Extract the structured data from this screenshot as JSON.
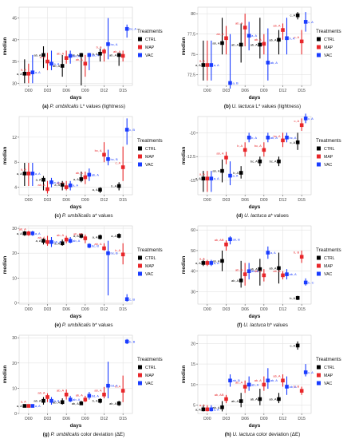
{
  "figure": {
    "treatments_title": "Treatments",
    "colors": {
      "CTRL": "#000000",
      "MAP": "#e8262a",
      "VAC": "#1a3cff"
    }
  },
  "chart_data": [
    {
      "type": "scatter",
      "ylabel": "median",
      "xlabel": "days",
      "caption": "(a) P. umbilicalis L* values (lightness)",
      "caption_parts": [
        "(a)",
        "P. umbilicalis",
        "L*",
        "values (lightness)"
      ],
      "categories": [
        "D00",
        "D03",
        "D06",
        "D09",
        "D12",
        "D15"
      ],
      "yticks": [
        30,
        35,
        40,
        45
      ],
      "ylim": [
        29.5,
        47.5
      ],
      "grid": true,
      "legend": "right",
      "series": [
        {
          "name": "CTRL",
          "values": [
            32.2,
            36.5,
            34.0,
            36.5,
            36.8,
            36.5
          ],
          "low": [
            30.0,
            33.5,
            31.5,
            29.5,
            35.0,
            34.0
          ],
          "high": [
            35.5,
            38.5,
            36.5,
            37.0,
            38.0,
            37.0
          ],
          "labels": [
            "a, A",
            "ab, A",
            "ab, A",
            "ab, A",
            "b, A",
            "ab, A"
          ]
        },
        {
          "name": "MAP",
          "values": [
            32.2,
            35.0,
            35.8,
            34.5,
            37.3,
            36.3
          ],
          "low": [
            30.0,
            33.0,
            34.5,
            31.5,
            35.0,
            35.0
          ],
          "high": [
            34.5,
            37.0,
            37.5,
            36.5,
            38.0,
            37.5
          ],
          "labels": [
            "a, A",
            "a, A",
            "ab, A",
            "ab, A",
            "b, A",
            "ab, A"
          ]
        },
        {
          "name": "VAC",
          "values": [
            32.5,
            34.5,
            36.3,
            36.5,
            39.0,
            42.5
          ],
          "low": [
            30.0,
            33.0,
            34.5,
            33.0,
            35.5,
            40.5
          ],
          "high": [
            36.5,
            37.5,
            37.5,
            37.0,
            45.0,
            43.5
          ],
          "labels": [
            "a, A",
            "a, A",
            "ab, A",
            "ab, A",
            "bc, A",
            "bc, A"
          ]
        }
      ]
    },
    {
      "type": "scatter",
      "ylabel": "median",
      "xlabel": "days",
      "caption": "(b) U. lactuca L* values (lightness)",
      "caption_parts": [
        "(b)",
        "U. lactuca",
        "L*",
        "values (lightness)"
      ],
      "categories": [
        "D00",
        "D03",
        "D06",
        "D09",
        "D12",
        "D15"
      ],
      "yticks": [
        72.5,
        75.0,
        77.5,
        80.0
      ],
      "ylim": [
        71.2,
        80.8
      ],
      "grid": true,
      "legend": "right",
      "series": [
        {
          "name": "CTRL",
          "values": [
            73.7,
            76.4,
            76.2,
            76.2,
            76.8,
            79.8
          ],
          "low": [
            71.8,
            75.0,
            74.0,
            74.5,
            75.0,
            79.3
          ],
          "high": [
            76.7,
            79.5,
            78.8,
            79.5,
            78.0,
            80.2
          ],
          "labels": [
            "a, A",
            "ab, A",
            "ab, A",
            "ab, A",
            "ab, A",
            "c, A"
          ]
        },
        {
          "name": "MAP",
          "values": [
            73.7,
            77.0,
            78.3,
            76.3,
            78.0,
            76.6
          ],
          "low": [
            71.8,
            75.0,
            76.0,
            75.0,
            76.8,
            75.0
          ],
          "high": [
            76.7,
            78.5,
            80.0,
            77.5,
            78.8,
            78.0
          ],
          "labels": [
            "a, A",
            "ab, A",
            "ab, A",
            "ab, A",
            "ab, A",
            "c, A"
          ]
        },
        {
          "name": "VAC",
          "values": [
            73.7,
            71.5,
            77.3,
            74.0,
            77.0,
            79.0
          ],
          "low": [
            71.8,
            70.8,
            75.5,
            71.8,
            75.0,
            77.8
          ],
          "high": [
            76.7,
            77.5,
            79.0,
            78.2,
            79.5,
            80.2
          ],
          "labels": [
            "a, A",
            "a, B",
            "a, A",
            "ab, A",
            "b, A",
            "c, A"
          ]
        }
      ]
    },
    {
      "type": "scatter",
      "ylabel": "median",
      "xlabel": "days",
      "caption": "(c) P. umbilicalis a* values",
      "caption_parts": [
        "(c)",
        "P. umbilicalis",
        "a*",
        "values"
      ],
      "categories": [
        "D00",
        "D03",
        "D06",
        "D09",
        "D12",
        "D15"
      ],
      "yticks": [
        4,
        8,
        12
      ],
      "ylim": [
        2.8,
        15.3
      ],
      "grid": true,
      "legend": "right",
      "series": [
        {
          "name": "CTRL",
          "values": [
            6.2,
            5.2,
            4.4,
            5.3,
            3.6,
            4.2
          ],
          "low": [
            4.2,
            3.5,
            3.5,
            4.8,
            3.1,
            3.5
          ],
          "high": [
            7.9,
            5.8,
            5.0,
            6.5,
            4.0,
            4.8
          ],
          "labels": [
            "a, A",
            "a, A",
            "a, A",
            "a, A",
            "a, A",
            "b, A"
          ]
        },
        {
          "name": "MAP",
          "values": [
            6.2,
            3.7,
            4.0,
            5.6,
            9.2,
            7.2
          ],
          "low": [
            4.2,
            3.0,
            3.5,
            4.5,
            8.0,
            5.0
          ],
          "high": [
            7.9,
            5.0,
            5.0,
            6.5,
            11.2,
            10.5
          ],
          "labels": [
            "a, A",
            "ab, A",
            "ab, A",
            "ab, A",
            "bc, A",
            "c, A"
          ]
        },
        {
          "name": "VAC",
          "values": [
            6.2,
            4.8,
            4.3,
            6.0,
            8.5,
            13.2
          ],
          "low": [
            4.2,
            4.0,
            3.5,
            5.0,
            7.5,
            10.8
          ],
          "high": [
            7.9,
            5.5,
            5.0,
            7.0,
            10.0,
            15.0
          ],
          "labels": [
            "a, A",
            "a, A",
            "a, A",
            "ab, A",
            "bc, B",
            "c, B"
          ]
        }
      ]
    },
    {
      "type": "scatter",
      "ylabel": "median",
      "xlabel": "days",
      "caption": "(d) U. lactuca a* values",
      "caption_parts": [
        "(d)",
        "U. lactuca",
        "a*",
        "values"
      ],
      "categories": [
        "D00",
        "D03",
        "D06",
        "D09",
        "D12",
        "D15"
      ],
      "yticks": [
        -15.0,
        -12.5,
        -10.0
      ],
      "ylim": [
        -16.5,
        -8.3
      ],
      "grid": true,
      "legend": "right",
      "series": [
        {
          "name": "CTRL",
          "values": [
            -14.8,
            -14.0,
            -14.2,
            -13.0,
            -13.0,
            -11.0
          ],
          "low": [
            -16.2,
            -15.2,
            -14.8,
            -13.5,
            -13.5,
            -11.8
          ],
          "high": [
            -14.0,
            -12.8,
            -13.5,
            -12.5,
            -12.5,
            -10.0
          ],
          "labels": [
            "a, A",
            "ab, A",
            "b, A",
            "bc, A",
            "bc, A",
            "c, A"
          ]
        },
        {
          "name": "MAP",
          "values": [
            -14.8,
            -12.6,
            -11.8,
            -11.8,
            -10.8,
            -9.2
          ],
          "low": [
            -16.2,
            -13.3,
            -12.5,
            -12.5,
            -11.5,
            -9.8
          ],
          "high": [
            -14.0,
            -12.0,
            -11.0,
            -11.0,
            -10.0,
            -8.5
          ],
          "labels": [
            "a, A",
            "ab, A",
            "b, A",
            "bc, A",
            "bc, A",
            "c, A"
          ]
        },
        {
          "name": "VAC",
          "values": [
            -14.8,
            -14.5,
            -10.5,
            -10.5,
            -10.5,
            -8.5
          ],
          "low": [
            -16.2,
            -15.5,
            -11.0,
            -11.0,
            -11.0,
            -9.0
          ],
          "high": [
            -14.0,
            -13.0,
            -10.0,
            -10.0,
            -10.0,
            -8.0
          ],
          "labels": [
            "a, A",
            "a, A",
            "b, A",
            "ab, A",
            "bc, A",
            "c, A"
          ]
        }
      ]
    },
    {
      "type": "scatter",
      "ylabel": "median",
      "xlabel": "days",
      "caption": "(e) P. umbilicalis b* values",
      "caption_parts": [
        "(e)",
        "P. umbilicalis",
        "b*",
        "values"
      ],
      "categories": [
        "D00",
        "D03",
        "D06",
        "D09",
        "D12",
        "D15"
      ],
      "yticks": [
        0,
        10,
        20,
        30
      ],
      "ylim": [
        -0.5,
        31
      ],
      "grid": true,
      "legend": "right",
      "series": [
        {
          "name": "CTRL",
          "values": [
            28.0,
            25.0,
            24.0,
            27.0,
            26.5,
            27.0
          ],
          "low": [
            27.0,
            23.5,
            23.0,
            26.0,
            25.5,
            26.0
          ],
          "high": [
            29.0,
            26.0,
            25.5,
            28.0,
            27.5,
            28.0
          ],
          "labels": [
            "a, A",
            "a, A",
            "a, A",
            "a, A",
            "a, A",
            "a, A"
          ]
        },
        {
          "name": "MAP",
          "values": [
            28.0,
            24.5,
            25.5,
            26.0,
            22.0,
            19.5
          ],
          "low": [
            27.0,
            23.0,
            24.0,
            24.0,
            21.0,
            15.5
          ],
          "high": [
            29.0,
            27.0,
            27.0,
            27.5,
            24.0,
            24.0
          ],
          "labels": [
            "ab, A",
            "ab, A",
            "ab, A",
            "ab, AB",
            "ab, A",
            "b, A"
          ]
        },
        {
          "name": "VAC",
          "values": [
            28.0,
            24.5,
            25.0,
            23.0,
            20.0,
            1.5
          ],
          "low": [
            27.0,
            22.5,
            24.0,
            22.0,
            3.0,
            0.5
          ],
          "high": [
            29.0,
            26.5,
            26.5,
            24.0,
            25.0,
            3.5
          ],
          "labels": [
            "a, A",
            "ab, A",
            "ab, A",
            "bc, B",
            "bc, B",
            "c, B"
          ]
        }
      ]
    },
    {
      "type": "scatter",
      "ylabel": "median",
      "xlabel": "days",
      "caption": "(f) U. lactuca b* values",
      "caption_parts": [
        "(f)",
        "U. lactuca",
        "b*",
        "values"
      ],
      "categories": [
        "D00",
        "D03",
        "D06",
        "D09",
        "D12",
        "D15"
      ],
      "yticks": [
        30,
        40,
        50,
        60
      ],
      "ylim": [
        24,
        62
      ],
      "grid": true,
      "legend": "right",
      "series": [
        {
          "name": "CTRL",
          "values": [
            44.0,
            45.0,
            35.5,
            41.0,
            41.5,
            27.0
          ],
          "low": [
            42.5,
            40.0,
            32.0,
            33.0,
            34.0,
            26.0
          ],
          "high": [
            45.5,
            50.0,
            45.0,
            46.0,
            49.0,
            28.0
          ],
          "labels": [
            "a, A",
            "ab, A",
            "ab, A",
            "ab, A",
            "ab, A",
            "b, A"
          ]
        },
        {
          "name": "MAP",
          "values": [
            44.0,
            53.0,
            38.5,
            38.0,
            38.0,
            47.0
          ],
          "low": [
            42.5,
            50.0,
            33.0,
            35.0,
            36.0,
            44.0
          ],
          "high": [
            45.5,
            55.0,
            44.0,
            41.0,
            40.0,
            50.0
          ],
          "labels": [
            "a, A",
            "ab, AB",
            "ab, A",
            "ab, A",
            "ab, A",
            "b, B"
          ]
        },
        {
          "name": "VAC",
          "values": [
            44.0,
            55.5,
            40.0,
            49.0,
            38.5,
            34.5
          ],
          "low": [
            42.5,
            53.0,
            36.0,
            46.0,
            36.0,
            33.0
          ],
          "high": [
            45.5,
            57.0,
            44.0,
            52.0,
            41.0,
            36.5
          ],
          "labels": [
            "a, A",
            "ab, B",
            "ab, A",
            "a, A",
            "ab, A",
            "b, C"
          ]
        }
      ]
    },
    {
      "type": "scatter",
      "ylabel": "median",
      "xlabel": "days",
      "caption": "(g) P. umbilicalis color deviation (ΔE)",
      "caption_parts": [
        "(g)",
        "P. umbilicalis",
        "",
        "color deviation (ΔE)"
      ],
      "categories": [
        "D00",
        "D03",
        "D06",
        "D09",
        "D12",
        "D15"
      ],
      "yticks": [
        0,
        10,
        20,
        30
      ],
      "ylim": [
        0,
        31
      ],
      "grid": true,
      "legend": "right",
      "series": [
        {
          "name": "CTRL",
          "values": [
            3.0,
            5.0,
            4.5,
            4.0,
            5.0,
            4.0
          ],
          "low": [
            2.5,
            3.5,
            3.5,
            3.5,
            4.0,
            3.0
          ],
          "high": [
            3.5,
            6.5,
            6.0,
            5.0,
            6.0,
            5.0
          ],
          "labels": [
            "a, A",
            "ab, A",
            "ab, A",
            "ab, A",
            "b, A",
            "ab, A"
          ]
        },
        {
          "name": "MAP",
          "values": [
            3.0,
            6.5,
            7.5,
            5.5,
            7.5,
            9.0
          ],
          "low": [
            2.5,
            4.5,
            5.5,
            4.5,
            6.0,
            4.5
          ],
          "high": [
            3.5,
            8.0,
            9.5,
            7.0,
            10.5,
            15.0
          ],
          "labels": [
            "a, A",
            "ab, A",
            "ab, A",
            "ab, A",
            "ab, A",
            "b, A"
          ]
        },
        {
          "name": "VAC",
          "values": [
            3.0,
            5.0,
            5.5,
            7.0,
            11.0,
            28.5
          ],
          "low": [
            2.5,
            3.5,
            4.5,
            5.5,
            6.0,
            27.5
          ],
          "high": [
            3.5,
            6.5,
            7.0,
            8.5,
            20.5,
            29.5
          ],
          "labels": [
            "a, A",
            "a, A",
            "ab, A",
            "bd, A",
            "bd, A",
            "b, B"
          ]
        }
      ]
    },
    {
      "type": "scatter",
      "ylabel": "median",
      "xlabel": "days",
      "caption": "(h) U. lactuca color deviation (ΔE)",
      "caption_parts": [
        "(h)",
        "U. lactuca",
        "",
        "color deviation (ΔE)"
      ],
      "categories": [
        "D00",
        "D03",
        "D06",
        "D09",
        "D12",
        "D15"
      ],
      "yticks": [
        5,
        10,
        15,
        20
      ],
      "ylim": [
        3,
        22
      ],
      "grid": true,
      "legend": "right",
      "series": [
        {
          "name": "CTRL",
          "values": [
            4.0,
            4.5,
            6.0,
            6.5,
            6.5,
            19.5
          ],
          "low": [
            3.5,
            3.5,
            4.5,
            5.0,
            5.5,
            18.5
          ],
          "high": [
            5.0,
            6.0,
            8.0,
            9.0,
            8.0,
            20.5
          ],
          "labels": [
            "a, A",
            "ab, A",
            "ab, A",
            "ab, A",
            "ab, A",
            "c, A"
          ]
        },
        {
          "name": "MAP",
          "values": [
            4.0,
            6.5,
            9.5,
            10.0,
            11.0,
            8.5
          ],
          "low": [
            3.5,
            5.5,
            8.0,
            8.5,
            9.5,
            7.5
          ],
          "high": [
            5.0,
            7.5,
            11.0,
            12.0,
            12.5,
            9.5
          ],
          "labels": [
            "a, A",
            "ab, AB",
            "ab, A",
            "ab, A",
            "ab, A",
            "b, B"
          ]
        },
        {
          "name": "VAC",
          "values": [
            4.0,
            11.0,
            10.0,
            11.0,
            9.5,
            13.0
          ],
          "low": [
            3.5,
            9.5,
            8.5,
            9.0,
            7.5,
            12.0
          ],
          "high": [
            5.0,
            12.5,
            12.0,
            14.0,
            12.0,
            15.0
          ],
          "labels": [
            "a, A",
            "ab, B",
            "ab, A",
            "ab, A",
            "ab, A",
            "c, A"
          ]
        }
      ]
    }
  ]
}
